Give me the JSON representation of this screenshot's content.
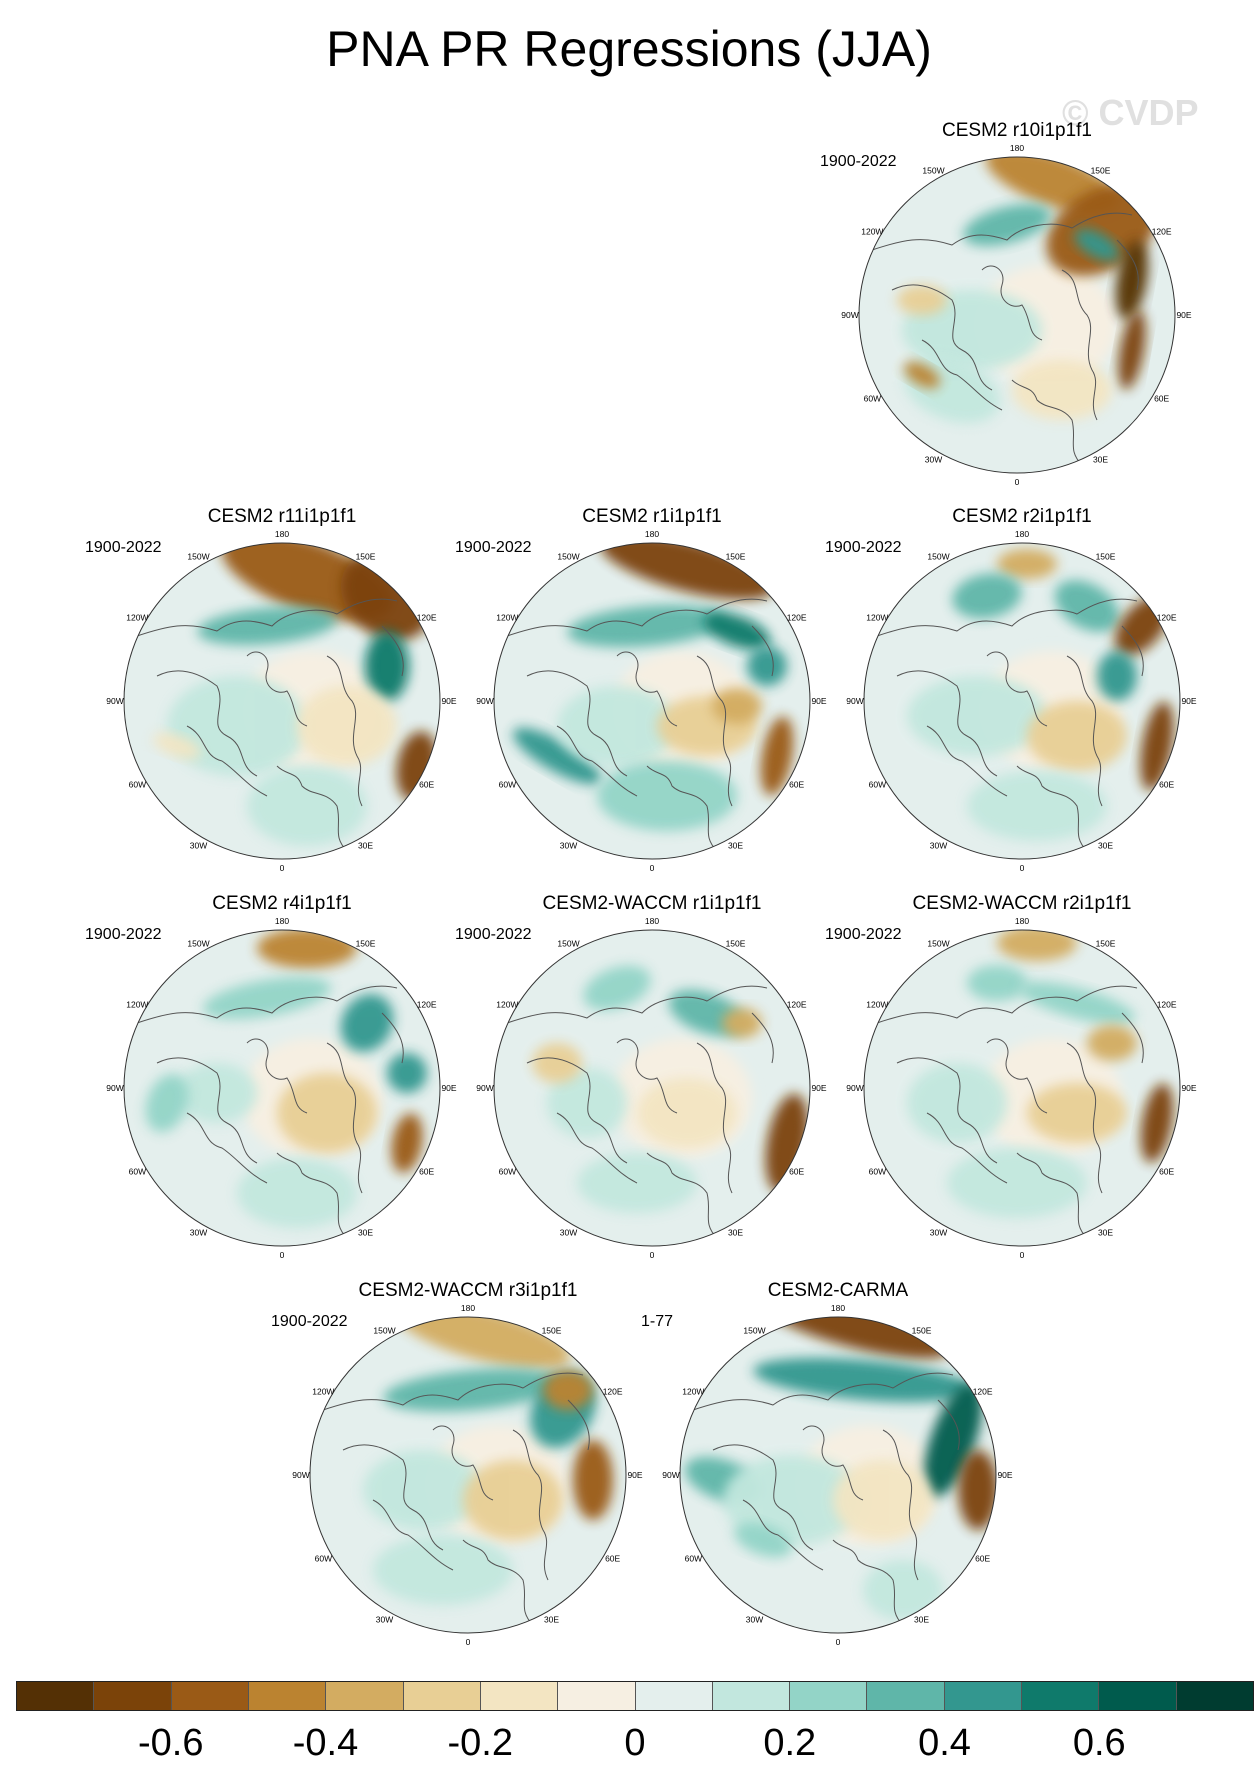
{
  "title": "PNA PR Regressions (JJA)",
  "watermark": "© CVDP",
  "longitude_labels": [
    "180",
    "150E",
    "120E",
    "90E",
    "60E",
    "30E",
    "0",
    "30W",
    "60W",
    "90W",
    "120W",
    "150W"
  ],
  "panels": [
    {
      "name": "CESM2 r10i1p1f1",
      "period": "1900-2022"
    },
    {
      "name": "CESM2 r11i1p1f1",
      "period": "1900-2022"
    },
    {
      "name": "CESM2 r1i1p1f1",
      "period": "1900-2022"
    },
    {
      "name": "CESM2 r2i1p1f1",
      "period": "1900-2022"
    },
    {
      "name": "CESM2 r4i1p1f1",
      "period": "1900-2022"
    },
    {
      "name": "CESM2-WACCM r1i1p1f1",
      "period": "1900-2022"
    },
    {
      "name": "CESM2-WACCM r2i1p1f1",
      "period": "1900-2022"
    },
    {
      "name": "CESM2-WACCM r3i1p1f1",
      "period": "1900-2022"
    },
    {
      "name": "CESM2-CARMA",
      "period": "1-77"
    }
  ],
  "colorbar": {
    "colors": [
      "#543005",
      "#7b4309",
      "#9a5a16",
      "#bb8330",
      "#d3ac61",
      "#e8cf95",
      "#f3e5c2",
      "#f6efe2",
      "#e4efed",
      "#c2e7de",
      "#93d4c7",
      "#5fb6a9",
      "#33978f",
      "#0f7a6b",
      "#005b4d",
      "#003c30"
    ],
    "tick_labels": [
      "-0.6",
      "-0.4",
      "-0.2",
      "0",
      "0.2",
      "0.4",
      "0.6"
    ],
    "tick_values": [
      -0.6,
      -0.4,
      -0.2,
      0,
      0.2,
      0.4,
      0.6
    ]
  }
}
